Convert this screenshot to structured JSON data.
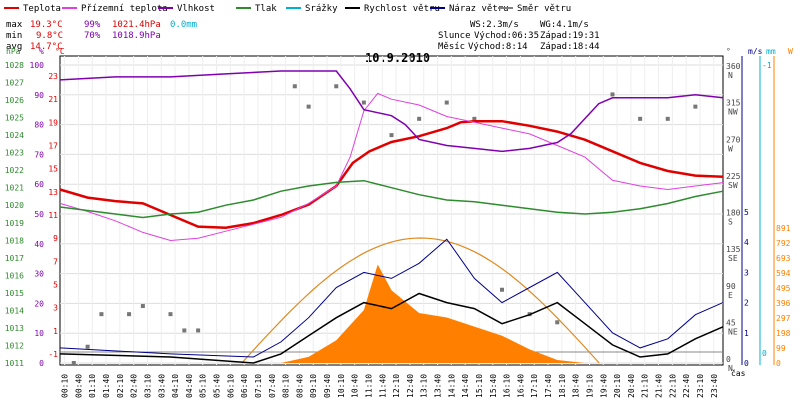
{
  "title": "10.9.2010",
  "legend": [
    {
      "label": "Teplota",
      "color": "#e00000"
    },
    {
      "label": "Přízemní teplota",
      "color": "#e040e0"
    },
    {
      "label": "Vlhkost",
      "color": "#8000b0"
    },
    {
      "label": "Tlak",
      "color": "#2e8b2e"
    },
    {
      "label": "Srážky",
      "color": "#00b0d0"
    },
    {
      "label": "Rychlost větru",
      "color": "#000000"
    },
    {
      "label": "Náraz větru",
      "color": "#00008b"
    },
    {
      "label": "Směr větru",
      "color": "#808080"
    }
  ],
  "stats": {
    "max": {
      "label": "max",
      "temp": "19.3°C",
      "hum": "99%",
      "press": "1021.4hPa",
      "rain": "0.0mm"
    },
    "min": {
      "label": "min",
      "temp": "9.8°C",
      "hum": "70%",
      "press": "1018.9hPa"
    },
    "avg": {
      "label": "avg",
      "temp": "14.7°C"
    },
    "ws": "WS:2.3m/s",
    "wg": "WG:4.1m/s",
    "sun": {
      "label": "Slunce",
      "rise": "Východ:06:35",
      "set": "Západ:19:31"
    },
    "moon": {
      "label": "Měsíc",
      "rise": "Východ:8:14",
      "set": "Západ:18:44"
    }
  },
  "axes": {
    "hpa_unit": "hPa",
    "pct_unit": "%",
    "c_unit": "°C",
    "deg_unit": "°",
    "ms_unit": "m/s",
    "mm_unit": "mm",
    "w_unit": "W",
    "time_label": "čas",
    "hpa_ticks": [
      "1028",
      "1027",
      "1026",
      "1025",
      "1024",
      "1023",
      "1022",
      "1021",
      "1020",
      "1019",
      "1018",
      "1017",
      "1016",
      "1015",
      "1014",
      "1013",
      "1012",
      "1011"
    ],
    "pct_ticks": [
      "100",
      "90",
      "80",
      "70",
      "60",
      "50",
      "40",
      "30",
      "20",
      "10",
      "0"
    ],
    "c_ticks": [
      "23",
      "21",
      "19",
      "17",
      "15",
      "13",
      "11",
      "9",
      "7",
      "5",
      "3",
      "1",
      "-1"
    ],
    "dir_ticks": [
      "360 N",
      "315 NW",
      "270 W",
      "225 SW",
      "180 S",
      "135 SE",
      "90 E",
      "45 NE",
      "0 N"
    ],
    "ms_ticks": [
      "5",
      "4",
      "3",
      "2",
      "1",
      "0"
    ],
    "mm_ticks": [
      "-1",
      "0"
    ],
    "w_ticks": [
      "891",
      "792",
      "693",
      "594",
      "495",
      "396",
      "297",
      "198",
      "99",
      "0"
    ],
    "time_ticks": [
      "00:10",
      "00:40",
      "01:10",
      "01:40",
      "02:10",
      "02:40",
      "03:10",
      "03:40",
      "04:10",
      "04:40",
      "05:10",
      "05:40",
      "06:10",
      "06:40",
      "07:10",
      "07:40",
      "08:10",
      "08:40",
      "09:10",
      "09:40",
      "10:10",
      "10:40",
      "11:10",
      "11:40",
      "12:10",
      "12:40",
      "13:10",
      "13:40",
      "14:10",
      "14:40",
      "15:10",
      "15:40",
      "16:10",
      "16:40",
      "17:10",
      "17:40",
      "18:10",
      "18:40",
      "19:10",
      "19:40",
      "20:10",
      "20:40",
      "21:10",
      "21:40",
      "22:10",
      "22:40",
      "23:10",
      "23:40"
    ]
  },
  "chart_data": {
    "type": "line",
    "title": "10.9.2010",
    "x_range_hours": [
      0,
      24
    ],
    "series": [
      {
        "name": "Teplota",
        "unit": "°C",
        "color": "#e00000",
        "points": [
          [
            0,
            13.2
          ],
          [
            1,
            12.5
          ],
          [
            2,
            12.2
          ],
          [
            3,
            12.0
          ],
          [
            4,
            11.0
          ],
          [
            5,
            10.0
          ],
          [
            6,
            9.9
          ],
          [
            7,
            10.3
          ],
          [
            8,
            11.0
          ],
          [
            9,
            11.9
          ],
          [
            10,
            13.5
          ],
          [
            10.6,
            15.5
          ],
          [
            11.2,
            16.5
          ],
          [
            12,
            17.3
          ],
          [
            13,
            17.8
          ],
          [
            14,
            18.5
          ],
          [
            14.5,
            19.0
          ],
          [
            15,
            19.1
          ],
          [
            16,
            19.1
          ],
          [
            17,
            18.7
          ],
          [
            18,
            18.2
          ],
          [
            19,
            17.5
          ],
          [
            20,
            16.5
          ],
          [
            21,
            15.5
          ],
          [
            22,
            14.8
          ],
          [
            23,
            14.4
          ],
          [
            24,
            14.3
          ]
        ]
      },
      {
        "name": "Přízemní teplota",
        "unit": "°C",
        "color": "#e040e0",
        "points": [
          [
            0,
            12.0
          ],
          [
            1,
            11.3
          ],
          [
            2,
            10.5
          ],
          [
            3,
            9.5
          ],
          [
            4,
            8.8
          ],
          [
            5,
            9.0
          ],
          [
            6,
            9.6
          ],
          [
            7,
            10.2
          ],
          [
            8,
            10.8
          ],
          [
            9,
            12.0
          ],
          [
            10,
            13.5
          ],
          [
            10.5,
            16.0
          ],
          [
            11,
            20.0
          ],
          [
            11.5,
            21.5
          ],
          [
            12,
            21.0
          ],
          [
            13,
            20.5
          ],
          [
            14,
            19.5
          ],
          [
            15,
            19.0
          ],
          [
            16,
            18.5
          ],
          [
            17,
            18.0
          ],
          [
            18,
            17.0
          ],
          [
            19,
            16.0
          ],
          [
            19.5,
            15.0
          ],
          [
            20,
            14.0
          ],
          [
            21,
            13.5
          ],
          [
            22,
            13.2
          ],
          [
            23,
            13.5
          ],
          [
            24,
            13.8
          ]
        ]
      },
      {
        "name": "Vlhkost",
        "unit": "%",
        "color": "#8000b0",
        "points": [
          [
            0,
            95
          ],
          [
            2,
            96
          ],
          [
            4,
            96
          ],
          [
            6,
            97
          ],
          [
            8,
            98
          ],
          [
            9,
            98
          ],
          [
            10,
            98
          ],
          [
            10.5,
            92
          ],
          [
            11,
            85
          ],
          [
            11.5,
            84
          ],
          [
            12,
            83
          ],
          [
            12.5,
            80
          ],
          [
            13,
            75
          ],
          [
            14,
            73
          ],
          [
            15,
            72
          ],
          [
            16,
            71
          ],
          [
            17,
            72
          ],
          [
            18,
            74
          ],
          [
            18.5,
            77
          ],
          [
            19,
            82
          ],
          [
            19.5,
            87
          ],
          [
            20,
            89
          ],
          [
            21,
            89
          ],
          [
            22,
            89
          ],
          [
            23,
            90
          ],
          [
            24,
            89
          ]
        ]
      },
      {
        "name": "Tlak",
        "unit": "hPa",
        "color": "#2e8b2e",
        "points": [
          [
            0,
            1019.9
          ],
          [
            1,
            1019.7
          ],
          [
            2,
            1019.5
          ],
          [
            3,
            1019.3
          ],
          [
            4,
            1019.5
          ],
          [
            5,
            1019.6
          ],
          [
            6,
            1020.0
          ],
          [
            7,
            1020.3
          ],
          [
            8,
            1020.8
          ],
          [
            9,
            1021.1
          ],
          [
            10,
            1021.3
          ],
          [
            11,
            1021.4
          ],
          [
            12,
            1021.0
          ],
          [
            13,
            1020.6
          ],
          [
            14,
            1020.3
          ],
          [
            15,
            1020.2
          ],
          [
            16,
            1020.0
          ],
          [
            17,
            1019.8
          ],
          [
            18,
            1019.6
          ],
          [
            19,
            1019.5
          ],
          [
            20,
            1019.6
          ],
          [
            21,
            1019.8
          ],
          [
            22,
            1020.1
          ],
          [
            23,
            1020.5
          ],
          [
            24,
            1020.8
          ]
        ]
      },
      {
        "name": "Rychlost větru",
        "unit": "m/s",
        "color": "#000000",
        "points": [
          [
            0,
            0.3
          ],
          [
            4,
            0.2
          ],
          [
            7,
            0.0
          ],
          [
            8,
            0.3
          ],
          [
            9,
            0.9
          ],
          [
            10,
            1.5
          ],
          [
            11,
            2.0
          ],
          [
            12,
            1.8
          ],
          [
            13,
            2.3
          ],
          [
            14,
            2.0
          ],
          [
            15,
            1.8
          ],
          [
            16,
            1.3
          ],
          [
            17,
            1.6
          ],
          [
            18,
            2.0
          ],
          [
            19,
            1.3
          ],
          [
            20,
            0.6
          ],
          [
            21,
            0.2
          ],
          [
            22,
            0.3
          ],
          [
            23,
            0.8
          ],
          [
            24,
            1.2
          ]
        ]
      },
      {
        "name": "Náraz větru",
        "unit": "m/s",
        "color": "#00008b",
        "points": [
          [
            0,
            0.5
          ],
          [
            4,
            0.3
          ],
          [
            7,
            0.2
          ],
          [
            8,
            0.7
          ],
          [
            9,
            1.5
          ],
          [
            10,
            2.5
          ],
          [
            11,
            3.0
          ],
          [
            12,
            2.8
          ],
          [
            13,
            3.3
          ],
          [
            14,
            4.1
          ],
          [
            15,
            2.8
          ],
          [
            16,
            2.0
          ],
          [
            17,
            2.5
          ],
          [
            18,
            3.0
          ],
          [
            19,
            2.0
          ],
          [
            20,
            1.0
          ],
          [
            21,
            0.5
          ],
          [
            22,
            0.8
          ],
          [
            23,
            1.6
          ],
          [
            24,
            2.0
          ]
        ]
      },
      {
        "name": "Solar",
        "unit": "W",
        "color": "#ff8000",
        "points": [
          [
            8,
            0
          ],
          [
            9,
            40
          ],
          [
            10,
            150
          ],
          [
            11,
            350
          ],
          [
            11.5,
            650
          ],
          [
            12,
            480
          ],
          [
            13,
            330
          ],
          [
            14,
            300
          ],
          [
            15,
            240
          ],
          [
            16,
            180
          ],
          [
            17,
            90
          ],
          [
            18,
            20
          ],
          [
            19,
            0
          ]
        ]
      }
    ],
    "solar_max_curve": {
      "unit": "W",
      "rise": 6.58,
      "set": 19.52,
      "peak": 825
    },
    "wind_direction_points": [
      [
        0.5,
        0
      ],
      [
        1,
        20
      ],
      [
        1.5,
        60
      ],
      [
        2.5,
        60
      ],
      [
        3,
        70
      ],
      [
        4,
        60
      ],
      [
        4.5,
        40
      ],
      [
        5,
        40
      ],
      [
        8.5,
        340
      ],
      [
        9,
        315
      ],
      [
        10,
        340
      ],
      [
        11,
        320
      ],
      [
        12,
        280
      ],
      [
        13,
        300
      ],
      [
        14,
        320
      ],
      [
        15,
        300
      ],
      [
        16,
        90
      ],
      [
        17,
        60
      ],
      [
        18,
        50
      ],
      [
        20,
        330
      ],
      [
        21,
        300
      ],
      [
        22,
        300
      ],
      [
        23,
        315
      ]
    ]
  }
}
